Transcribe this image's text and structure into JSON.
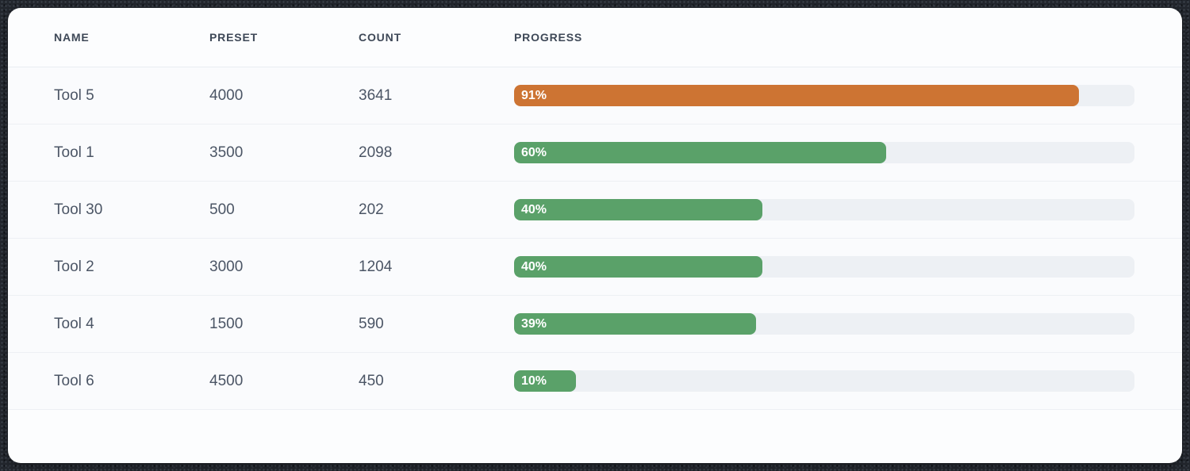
{
  "colors": {
    "orange": "#cd7433",
    "green": "#5aa169",
    "track": "#edf0f4"
  },
  "table": {
    "columns": [
      {
        "key": "name",
        "label": "NAME"
      },
      {
        "key": "preset",
        "label": "PRESET"
      },
      {
        "key": "count",
        "label": "COUNT"
      },
      {
        "key": "progress",
        "label": "PROGRESS"
      }
    ],
    "rows": [
      {
        "name": "Tool 5",
        "preset": "4000",
        "count": "3641",
        "progress": 91,
        "progress_label": "91%",
        "color": "orange"
      },
      {
        "name": "Tool 1",
        "preset": "3500",
        "count": "2098",
        "progress": 60,
        "progress_label": "60%",
        "color": "green"
      },
      {
        "name": "Tool 30",
        "preset": "500",
        "count": "202",
        "progress": 40,
        "progress_label": "40%",
        "color": "green"
      },
      {
        "name": "Tool 2",
        "preset": "3000",
        "count": "1204",
        "progress": 40,
        "progress_label": "40%",
        "color": "green"
      },
      {
        "name": "Tool 4",
        "preset": "1500",
        "count": "590",
        "progress": 39,
        "progress_label": "39%",
        "color": "green"
      },
      {
        "name": "Tool 6",
        "preset": "4500",
        "count": "450",
        "progress": 10,
        "progress_label": "10%",
        "color": "green"
      }
    ]
  }
}
